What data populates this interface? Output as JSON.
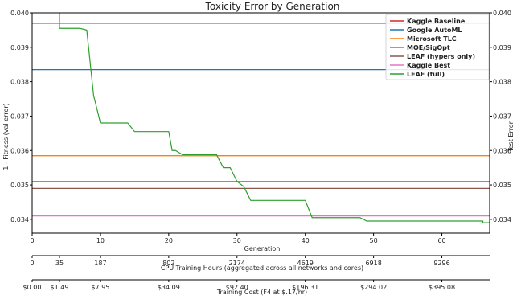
{
  "chart_data": {
    "type": "line",
    "title": "Toxicity Error by Generation",
    "xlabel": "Generation",
    "ylabel_left": "1 - Fitness (val error)",
    "ylabel_right": "Test Error",
    "xlim": [
      0,
      67
    ],
    "ylim": [
      0.0336,
      0.04
    ],
    "xticks": [
      "0",
      "10",
      "20",
      "30",
      "40",
      "50",
      "60"
    ],
    "yticks": [
      "0.034",
      "0.035",
      "0.036",
      "0.037",
      "0.038",
      "0.039",
      "0.040"
    ],
    "yticks_right": [
      "0.034",
      "0.035",
      "0.036",
      "0.037",
      "0.038",
      "0.039",
      "0.040"
    ],
    "grid": false,
    "legend_position": "top-right",
    "hlines": [
      {
        "name": "Kaggle Baseline",
        "value": 0.0397,
        "color": "#d62728"
      },
      {
        "name": "Google AutoML",
        "value": 0.03835,
        "color": "#1f77b4"
      },
      {
        "name": "Microsoft TLC",
        "value": 0.03585,
        "color": "#ff7f0e"
      },
      {
        "name": "MOE/SigOpt",
        "value": 0.0351,
        "color": "#9467bd"
      },
      {
        "name": "LEAF (hypers only)",
        "value": 0.0349,
        "color": "#8c564b"
      },
      {
        "name": "Kaggle Best",
        "value": 0.0341,
        "color": "#e377c2"
      }
    ],
    "series": [
      {
        "name": "LEAF (full)",
        "color": "#2ca02c",
        "points": [
          [
            4,
            0.0402
          ],
          [
            4,
            0.03955
          ],
          [
            7,
            0.03955
          ],
          [
            8,
            0.0395
          ],
          [
            9,
            0.0376
          ],
          [
            10,
            0.0368
          ],
          [
            14,
            0.0368
          ],
          [
            15,
            0.03655
          ],
          [
            20,
            0.03655
          ],
          [
            20.5,
            0.036
          ],
          [
            21,
            0.036
          ],
          [
            22,
            0.03588
          ],
          [
            27,
            0.03588
          ],
          [
            28,
            0.0355
          ],
          [
            29,
            0.0355
          ],
          [
            30,
            0.0351
          ],
          [
            31,
            0.03495
          ],
          [
            32,
            0.03455
          ],
          [
            40,
            0.03455
          ],
          [
            41,
            0.03405
          ],
          [
            48,
            0.03405
          ],
          [
            49,
            0.03395
          ],
          [
            66,
            0.03395
          ],
          [
            66,
            0.0339
          ],
          [
            70,
            0.0339
          ]
        ]
      }
    ],
    "secondary_axes": [
      {
        "label": "CPU Training Hours (aggregated across all networks and cores)",
        "ticks": [
          {
            "generation": 0,
            "label": "0"
          },
          {
            "generation": 4,
            "label": "35"
          },
          {
            "generation": 10,
            "label": "187"
          },
          {
            "generation": 20,
            "label": "802"
          },
          {
            "generation": 30,
            "label": "2174"
          },
          {
            "generation": 40,
            "label": "4619"
          },
          {
            "generation": 50,
            "label": "6918"
          },
          {
            "generation": 60,
            "label": "9296"
          }
        ]
      },
      {
        "label": "Training Cost (F4 at $.17/hr)",
        "ticks": [
          {
            "generation": 0,
            "label": "$0.00"
          },
          {
            "generation": 4,
            "label": "$1.49"
          },
          {
            "generation": 10,
            "label": "$7.95"
          },
          {
            "generation": 20,
            "label": "$34.09"
          },
          {
            "generation": 30,
            "label": "$92.40"
          },
          {
            "generation": 40,
            "label": "$196.31"
          },
          {
            "generation": 50,
            "label": "$294.02"
          },
          {
            "generation": 60,
            "label": "$395.08"
          }
        ]
      }
    ]
  }
}
